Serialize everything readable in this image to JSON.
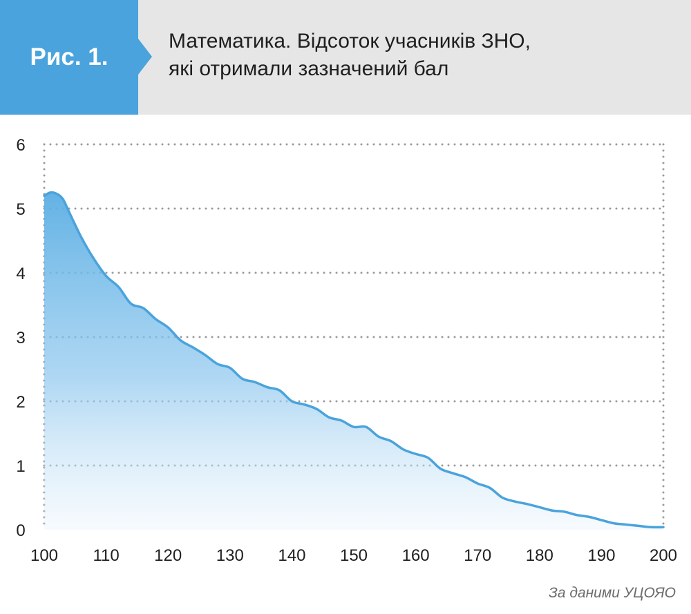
{
  "header": {
    "badge": "Рис. 1.",
    "title_line1": "Математика. Відсоток учасників ЗНО,",
    "title_line2": "які отримали зазначений бал"
  },
  "source": "За даними  УЦОЯО",
  "colors": {
    "accent": "#4aa3dc",
    "line": "#4aa3dc",
    "fill_top": "#5aaee3",
    "grid": "#9a9a9a"
  },
  "chart_data": {
    "type": "area",
    "title": "Математика. Відсоток учасників ЗНО, які отримали зазначений бал",
    "xlabel": "",
    "ylabel": "",
    "xlim": [
      100,
      200
    ],
    "ylim": [
      0,
      6
    ],
    "x_ticks": [
      100,
      110,
      120,
      130,
      140,
      150,
      160,
      170,
      180,
      190,
      200
    ],
    "y_ticks": [
      0,
      1,
      2,
      3,
      4,
      5,
      6
    ],
    "grid": true,
    "legend": "none",
    "series": [
      {
        "x": [
          100,
          101,
          102,
          103,
          104,
          106,
          108,
          110,
          112,
          114,
          116,
          118,
          120,
          122,
          124,
          126,
          128,
          130,
          132,
          134,
          136,
          138,
          140,
          142,
          144,
          146,
          148,
          150,
          152,
          154,
          156,
          158,
          160,
          162,
          164,
          166,
          168,
          170,
          172,
          174,
          176,
          178,
          180,
          182,
          184,
          186,
          188,
          190,
          192,
          194,
          196,
          198,
          200
        ],
        "values": [
          5.2,
          5.25,
          5.23,
          5.15,
          4.95,
          4.55,
          4.22,
          3.95,
          3.78,
          3.52,
          3.45,
          3.28,
          3.15,
          2.95,
          2.84,
          2.72,
          2.58,
          2.52,
          2.35,
          2.3,
          2.22,
          2.17,
          2.0,
          1.95,
          1.88,
          1.75,
          1.7,
          1.6,
          1.6,
          1.45,
          1.38,
          1.25,
          1.18,
          1.12,
          0.95,
          0.88,
          0.82,
          0.72,
          0.65,
          0.5,
          0.44,
          0.4,
          0.35,
          0.3,
          0.28,
          0.23,
          0.2,
          0.15,
          0.1,
          0.08,
          0.06,
          0.04,
          0.04
        ]
      }
    ]
  }
}
